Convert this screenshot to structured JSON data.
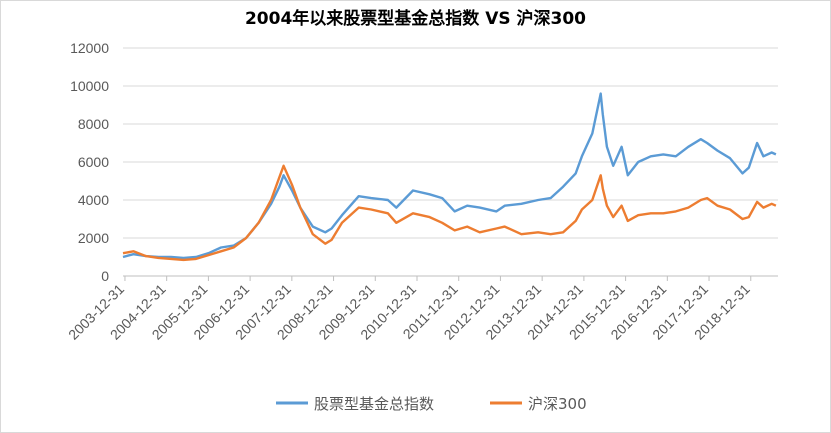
{
  "chart_data": {
    "type": "line",
    "title": "2004年以来股票型基金总指数 VS 沪深300",
    "xlabel": "",
    "ylabel": "",
    "ylim": [
      0,
      12000
    ],
    "yticks": [
      0,
      2000,
      4000,
      6000,
      8000,
      10000,
      12000
    ],
    "xticks": [
      "2003-12-31",
      "2004-12-31",
      "2005-12-31",
      "2006-12-31",
      "2007-12-31",
      "2008-12-31",
      "2009-12-31",
      "2010-12-31",
      "2011-12-31",
      "2012-12-31",
      "2013-12-31",
      "2014-12-31",
      "2015-12-31",
      "2016-12-31",
      "2017-12-31",
      "2018-12-31"
    ],
    "grid": true,
    "legend_position": "bottom",
    "series": [
      {
        "name": "股票型基金总指数",
        "color": "#5B9BD5",
        "x": [
          2003.95,
          2004.2,
          2004.5,
          2004.8,
          2005.1,
          2005.4,
          2005.7,
          2006.0,
          2006.3,
          2006.6,
          2006.9,
          2007.2,
          2007.5,
          2007.7,
          2007.8,
          2008.0,
          2008.2,
          2008.5,
          2008.8,
          2008.95,
          2009.2,
          2009.6,
          2009.9,
          2010.3,
          2010.5,
          2010.9,
          2011.3,
          2011.6,
          2011.9,
          2012.2,
          2012.5,
          2012.9,
          2013.1,
          2013.5,
          2013.9,
          2014.2,
          2014.5,
          2014.8,
          2014.95,
          2015.2,
          2015.4,
          2015.45,
          2015.55,
          2015.7,
          2015.9,
          2016.05,
          2016.3,
          2016.6,
          2016.9,
          2017.2,
          2017.5,
          2017.8,
          2017.95,
          2018.2,
          2018.5,
          2018.8,
          2018.95,
          2019.15,
          2019.3,
          2019.5,
          2019.6
        ],
        "values": [
          1000,
          1150,
          1050,
          1000,
          1000,
          950,
          1000,
          1200,
          1500,
          1600,
          2000,
          2800,
          3800,
          4700,
          5300,
          4500,
          3600,
          2600,
          2300,
          2500,
          3200,
          4200,
          4100,
          4000,
          3600,
          4500,
          4300,
          4100,
          3400,
          3700,
          3600,
          3400,
          3700,
          3800,
          4000,
          4100,
          4700,
          5400,
          6300,
          7500,
          9600,
          8500,
          6800,
          5800,
          6800,
          5300,
          6000,
          6300,
          6400,
          6300,
          6800,
          7200,
          7000,
          6600,
          6200,
          5400,
          5700,
          7000,
          6300,
          6500,
          6400
        ]
      },
      {
        "name": "沪深300",
        "color": "#ED7D31",
        "x": [
          2003.95,
          2004.2,
          2004.5,
          2004.8,
          2005.1,
          2005.4,
          2005.7,
          2006.0,
          2006.3,
          2006.6,
          2006.9,
          2007.2,
          2007.5,
          2007.7,
          2007.8,
          2008.0,
          2008.2,
          2008.5,
          2008.8,
          2008.95,
          2009.2,
          2009.6,
          2009.9,
          2010.3,
          2010.5,
          2010.9,
          2011.3,
          2011.6,
          2011.9,
          2012.2,
          2012.5,
          2012.9,
          2013.1,
          2013.5,
          2013.9,
          2014.2,
          2014.5,
          2014.8,
          2014.95,
          2015.2,
          2015.4,
          2015.45,
          2015.55,
          2015.7,
          2015.9,
          2016.05,
          2016.3,
          2016.6,
          2016.9,
          2017.2,
          2017.5,
          2017.8,
          2017.95,
          2018.2,
          2018.5,
          2018.8,
          2018.95,
          2019.15,
          2019.3,
          2019.5,
          2019.6
        ],
        "values": [
          1200,
          1300,
          1050,
          950,
          900,
          850,
          900,
          1100,
          1300,
          1500,
          2000,
          2800,
          4000,
          5200,
          5800,
          4800,
          3600,
          2200,
          1700,
          1900,
          2800,
          3600,
          3500,
          3300,
          2800,
          3300,
          3100,
          2800,
          2400,
          2600,
          2300,
          2500,
          2600,
          2200,
          2300,
          2200,
          2300,
          2900,
          3500,
          4000,
          5300,
          4600,
          3700,
          3100,
          3700,
          2900,
          3200,
          3300,
          3300,
          3400,
          3600,
          4000,
          4100,
          3700,
          3500,
          3000,
          3100,
          3900,
          3600,
          3800,
          3700
        ]
      }
    ]
  }
}
